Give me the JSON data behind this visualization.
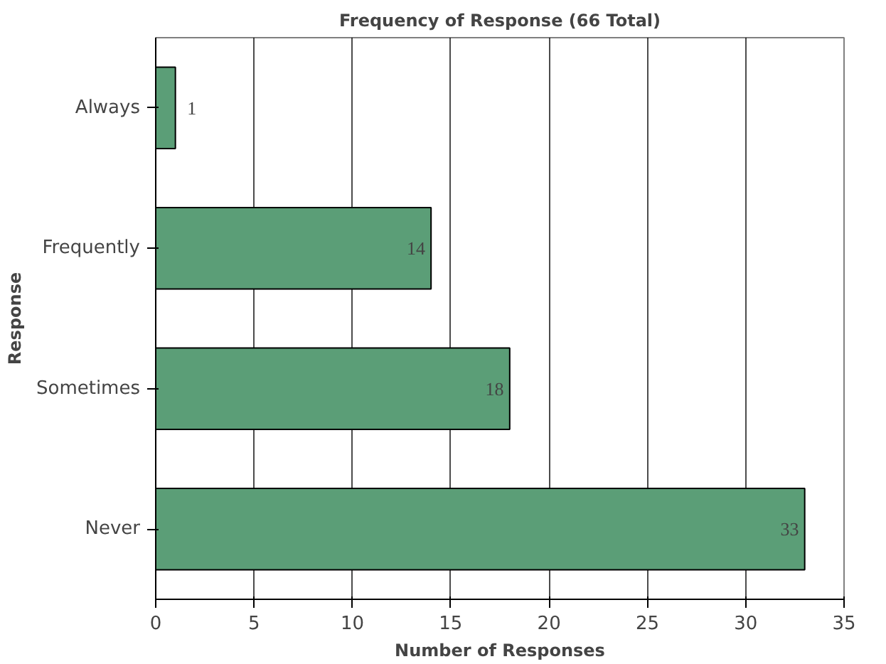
{
  "chart_data": {
    "type": "bar",
    "orientation": "horizontal",
    "title": "Frequency of Response (66 Total)",
    "xlabel": "Number of Responses",
    "ylabel": "Response",
    "categories": [
      "Always",
      "Frequently",
      "Sometimes",
      "Never"
    ],
    "values": [
      1,
      14,
      18,
      33
    ],
    "color": "#5b9e77",
    "data_labels": true,
    "xlim": [
      0,
      35
    ],
    "xticks": [
      0,
      5,
      10,
      15,
      20,
      25,
      30,
      35
    ],
    "grid": "x"
  }
}
